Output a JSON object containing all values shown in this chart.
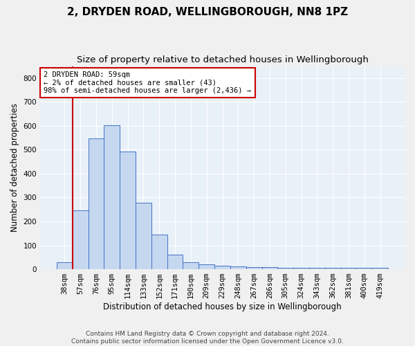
{
  "title_line1": "2, DRYDEN ROAD, WELLINGBOROUGH, NN8 1PZ",
  "title_line2": "Size of property relative to detached houses in Wellingborough",
  "xlabel": "Distribution of detached houses by size in Wellingborough",
  "ylabel": "Number of detached properties",
  "footnote": "Contains HM Land Registry data © Crown copyright and database right 2024.\nContains public sector information licensed under the Open Government Licence v3.0.",
  "categories": [
    "38sqm",
    "57sqm",
    "76sqm",
    "95sqm",
    "114sqm",
    "133sqm",
    "152sqm",
    "171sqm",
    "190sqm",
    "209sqm",
    "229sqm",
    "248sqm",
    "267sqm",
    "286sqm",
    "305sqm",
    "324sqm",
    "343sqm",
    "362sqm",
    "381sqm",
    "400sqm",
    "419sqm"
  ],
  "values": [
    30,
    247,
    548,
    603,
    493,
    278,
    145,
    60,
    30,
    20,
    15,
    12,
    10,
    8,
    7,
    7,
    7,
    5,
    7,
    5,
    5
  ],
  "bar_color": "#c5d8f0",
  "bar_edge_color": "#4472c4",
  "background_color": "#e8f0f8",
  "grid_color": "#ffffff",
  "annotation_box_text": "2 DRYDEN ROAD: 59sqm\n← 2% of detached houses are smaller (43)\n98% of semi-detached houses are larger (2,436) →",
  "annotation_box_color": "#cc0000",
  "vline_color": "#cc0000",
  "ylim": [
    0,
    850
  ],
  "yticks": [
    0,
    100,
    200,
    300,
    400,
    500,
    600,
    700,
    800
  ],
  "title_fontsize": 11,
  "subtitle_fontsize": 9.5,
  "label_fontsize": 8.5,
  "tick_fontsize": 7.5,
  "footnote_fontsize": 6.5,
  "ann_fontsize": 7.5
}
